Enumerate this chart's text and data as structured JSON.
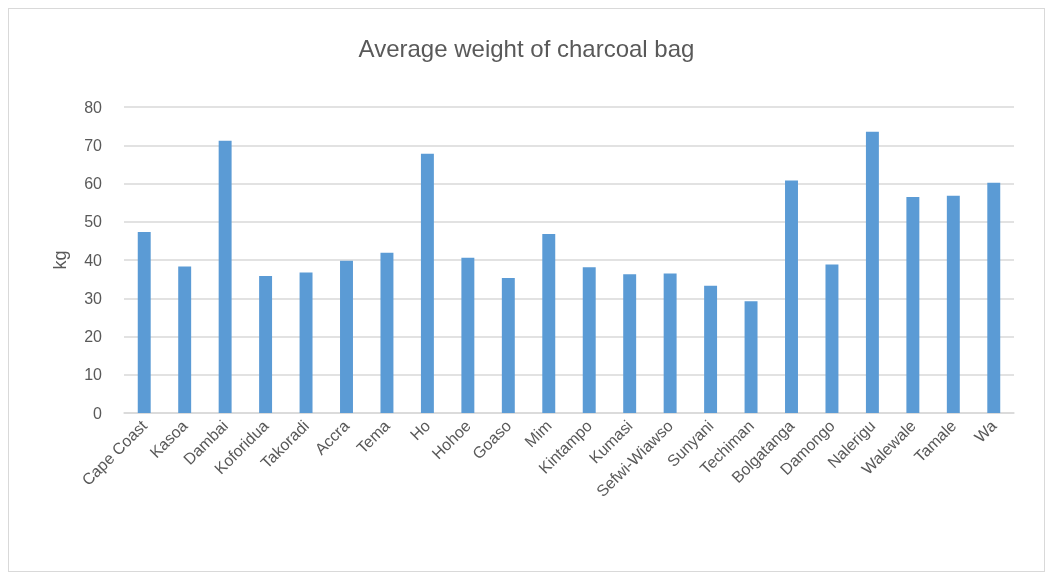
{
  "chart_data": {
    "type": "bar",
    "title": "Average weight of charcoal bag",
    "ylabel": "kg",
    "categories": [
      "Cape Coast",
      "Kasoa",
      "Dambai",
      "Koforidua",
      "Takoradi",
      "Accra",
      "Tema",
      "Ho",
      "Hohoe",
      "Goaso",
      "Mim",
      "Kintampo",
      "Kumasi",
      "Sefwi-Wiawso",
      "Sunyani",
      "Techiman",
      "Bolgatanga",
      "Damongo",
      "Nalerigu",
      "Walewale",
      "Tamale",
      "Wa"
    ],
    "values": [
      47.3,
      38.3,
      71.2,
      35.8,
      36.7,
      39.8,
      41.9,
      67.8,
      40.6,
      35.3,
      46.8,
      38.1,
      36.3,
      36.5,
      33.3,
      29.2,
      60.8,
      38.8,
      73.5,
      56.5,
      56.8,
      60.2
    ],
    "color": "#5b9bd5",
    "ylim": [
      0,
      80
    ],
    "yticks": [
      0,
      10,
      20,
      30,
      40,
      50,
      60,
      70,
      80
    ],
    "grid": "y"
  }
}
